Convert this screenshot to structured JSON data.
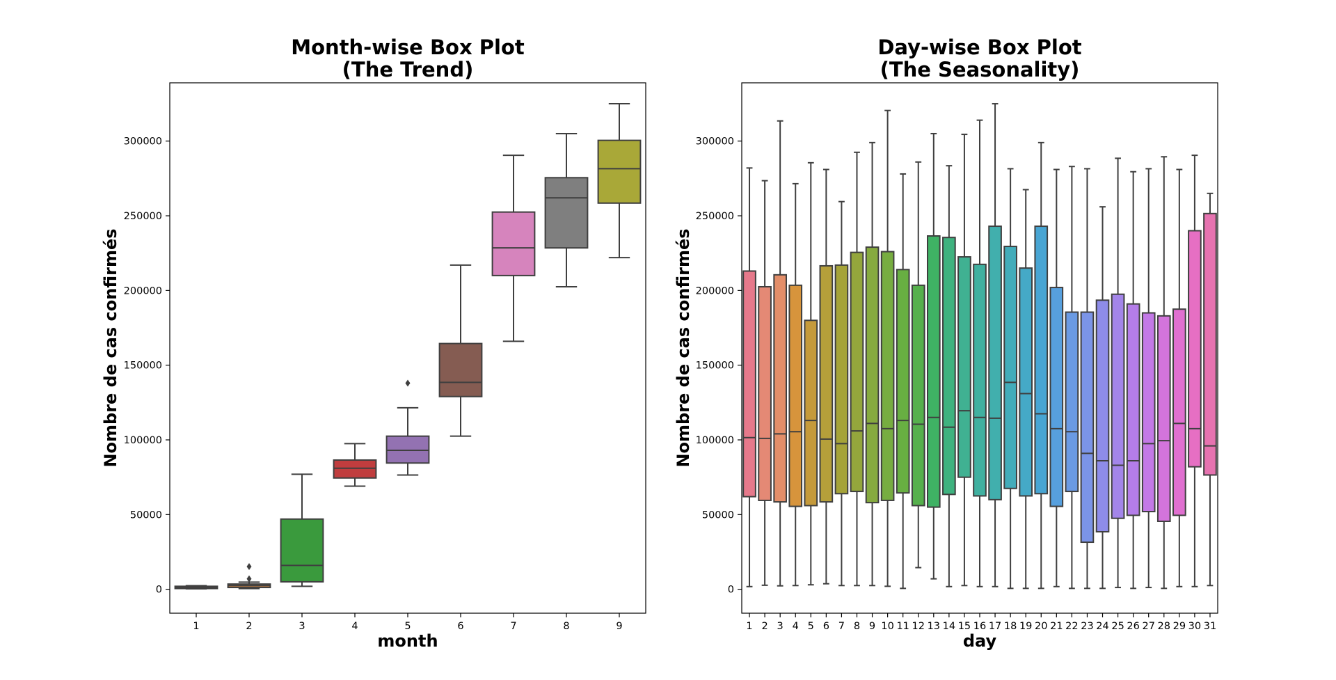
{
  "chart_data": [
    {
      "type": "box",
      "title": "Month-wise Box Plot\n(The Trend)",
      "xlabel": "month",
      "ylabel": "Nombre de cas confirmés",
      "ylim": [
        -16000,
        339000
      ],
      "yticks": [
        0,
        50000,
        100000,
        150000,
        200000,
        250000,
        300000
      ],
      "grid": false,
      "categories": [
        "1",
        "2",
        "3",
        "4",
        "5",
        "6",
        "7",
        "8",
        "9"
      ],
      "colors": [
        "#e58c8a",
        "#bb7b45",
        "#3a9a3d",
        "#c03d3e",
        "#9372b2",
        "#855c52",
        "#d684bd",
        "#7f7f7f",
        "#a9a838"
      ],
      "boxes": [
        {
          "whislo": 300,
          "q1": 500,
          "med": 1200,
          "q3": 2000,
          "whishi": 2400,
          "fliers": []
        },
        {
          "whislo": 500,
          "q1": 1200,
          "med": 2500,
          "q3": 3500,
          "whishi": 4800,
          "fliers": [
            7000,
            15200
          ]
        },
        {
          "whislo": 2000,
          "q1": 5000,
          "med": 16000,
          "q3": 47000,
          "whishi": 77000,
          "fliers": []
        },
        {
          "whislo": 69000,
          "q1": 74500,
          "med": 81000,
          "q3": 86500,
          "whishi": 97500,
          "fliers": []
        },
        {
          "whislo": 76500,
          "q1": 84500,
          "med": 93000,
          "q3": 102500,
          "whishi": 121500,
          "fliers": [
            138000
          ]
        },
        {
          "whislo": 102500,
          "q1": 129000,
          "med": 138500,
          "q3": 164500,
          "whishi": 217000,
          "fliers": []
        },
        {
          "whislo": 166000,
          "q1": 210000,
          "med": 228500,
          "q3": 252500,
          "whishi": 290500,
          "fliers": []
        },
        {
          "whislo": 202500,
          "q1": 228500,
          "med": 262000,
          "q3": 275500,
          "whishi": 305000,
          "fliers": []
        },
        {
          "whislo": 222000,
          "q1": 258500,
          "med": 281500,
          "q3": 300500,
          "whishi": 325000,
          "fliers": []
        }
      ]
    },
    {
      "type": "box",
      "title": "Day-wise Box Plot\n(The Seasonality)",
      "xlabel": "day",
      "ylabel": "Nombre de cas confirmés",
      "ylim": [
        -16000,
        339000
      ],
      "yticks": [
        0,
        50000,
        100000,
        150000,
        200000,
        250000,
        300000
      ],
      "grid": false,
      "categories": [
        "1",
        "2",
        "3",
        "4",
        "5",
        "6",
        "7",
        "8",
        "9",
        "10",
        "11",
        "12",
        "13",
        "14",
        "15",
        "16",
        "17",
        "18",
        "19",
        "20",
        "21",
        "22",
        "23",
        "24",
        "25",
        "26",
        "27",
        "28",
        "29",
        "30",
        "31"
      ],
      "colors": [
        "#e6798b",
        "#e48975",
        "#e38e69",
        "#d7943c",
        "#c59a3b",
        "#b59f3a",
        "#a5a338",
        "#94a63c",
        "#86aa3f",
        "#77ad40",
        "#68af42",
        "#56b04c",
        "#3fb264",
        "#3fb27f",
        "#40b192",
        "#40b0a0",
        "#41afad",
        "#43acba",
        "#45a9c7",
        "#48a5d3",
        "#57a0de",
        "#6a9ae3",
        "#7b94e7",
        "#8e8ce9",
        "#a385e9",
        "#b47de9",
        "#c379e7",
        "#d374dc",
        "#e070d0",
        "#e66fc3",
        "#e673b0"
      ],
      "boxes": [
        {
          "whislo": 1800,
          "q1": 62000,
          "med": 101500,
          "q3": 213000,
          "whishi": 282000,
          "fliers": []
        },
        {
          "whislo": 2700,
          "q1": 59500,
          "med": 101000,
          "q3": 202500,
          "whishi": 273500,
          "fliers": []
        },
        {
          "whislo": 2300,
          "q1": 58500,
          "med": 104000,
          "q3": 210500,
          "whishi": 313500,
          "fliers": []
        },
        {
          "whislo": 2500,
          "q1": 55500,
          "med": 105500,
          "q3": 203500,
          "whishi": 271500,
          "fliers": []
        },
        {
          "whislo": 3000,
          "q1": 56000,
          "med": 113000,
          "q3": 180000,
          "whishi": 285500,
          "fliers": []
        },
        {
          "whislo": 3700,
          "q1": 58500,
          "med": 100500,
          "q3": 216500,
          "whishi": 281000,
          "fliers": []
        },
        {
          "whislo": 2500,
          "q1": 64000,
          "med": 97500,
          "q3": 217000,
          "whishi": 259500,
          "fliers": []
        },
        {
          "whislo": 2500,
          "q1": 65500,
          "med": 106000,
          "q3": 225500,
          "whishi": 292500,
          "fliers": []
        },
        {
          "whislo": 2500,
          "q1": 58000,
          "med": 111000,
          "q3": 229000,
          "whishi": 299000,
          "fliers": []
        },
        {
          "whislo": 2000,
          "q1": 59500,
          "med": 107500,
          "q3": 226000,
          "whishi": 320500,
          "fliers": []
        },
        {
          "whislo": 600,
          "q1": 64500,
          "med": 113000,
          "q3": 214000,
          "whishi": 278000,
          "fliers": []
        },
        {
          "whislo": 14500,
          "q1": 56000,
          "med": 110500,
          "q3": 203500,
          "whishi": 286000,
          "fliers": []
        },
        {
          "whislo": 7000,
          "q1": 55000,
          "med": 115000,
          "q3": 236500,
          "whishi": 305000,
          "fliers": []
        },
        {
          "whislo": 1800,
          "q1": 63500,
          "med": 108500,
          "q3": 235500,
          "whishi": 283500,
          "fliers": []
        },
        {
          "whislo": 2500,
          "q1": 75000,
          "med": 119500,
          "q3": 222500,
          "whishi": 304500,
          "fliers": []
        },
        {
          "whislo": 1800,
          "q1": 62500,
          "med": 115000,
          "q3": 217500,
          "whishi": 314000,
          "fliers": []
        },
        {
          "whislo": 1800,
          "q1": 60000,
          "med": 114500,
          "q3": 243000,
          "whishi": 325000,
          "fliers": []
        },
        {
          "whislo": 600,
          "q1": 67500,
          "med": 138500,
          "q3": 229500,
          "whishi": 281500,
          "fliers": []
        },
        {
          "whislo": 600,
          "q1": 62500,
          "med": 131000,
          "q3": 215000,
          "whishi": 267500,
          "fliers": []
        },
        {
          "whislo": 600,
          "q1": 64000,
          "med": 117500,
          "q3": 243000,
          "whishi": 299000,
          "fliers": []
        },
        {
          "whislo": 1800,
          "q1": 55500,
          "med": 107500,
          "q3": 202000,
          "whishi": 281000,
          "fliers": []
        },
        {
          "whislo": 600,
          "q1": 65500,
          "med": 105500,
          "q3": 185500,
          "whishi": 283000,
          "fliers": []
        },
        {
          "whislo": 600,
          "q1": 31500,
          "med": 91000,
          "q3": 185500,
          "whishi": 281500,
          "fliers": []
        },
        {
          "whislo": 600,
          "q1": 38500,
          "med": 86000,
          "q3": 193500,
          "whishi": 256000,
          "fliers": []
        },
        {
          "whislo": 1200,
          "q1": 47500,
          "med": 83000,
          "q3": 197500,
          "whishi": 288500,
          "fliers": []
        },
        {
          "whislo": 600,
          "q1": 49500,
          "med": 86000,
          "q3": 191000,
          "whishi": 279500,
          "fliers": []
        },
        {
          "whislo": 1200,
          "q1": 52000,
          "med": 97500,
          "q3": 185000,
          "whishi": 281500,
          "fliers": []
        },
        {
          "whislo": 600,
          "q1": 45500,
          "med": 99500,
          "q3": 183000,
          "whishi": 289500,
          "fliers": []
        },
        {
          "whislo": 1800,
          "q1": 49500,
          "med": 111000,
          "q3": 187500,
          "whishi": 281000,
          "fliers": []
        },
        {
          "whislo": 1800,
          "q1": 82000,
          "med": 107500,
          "q3": 240000,
          "whishi": 290500,
          "fliers": []
        },
        {
          "whislo": 2500,
          "q1": 76500,
          "med": 96000,
          "q3": 251500,
          "whishi": 265000,
          "fliers": []
        }
      ]
    }
  ]
}
